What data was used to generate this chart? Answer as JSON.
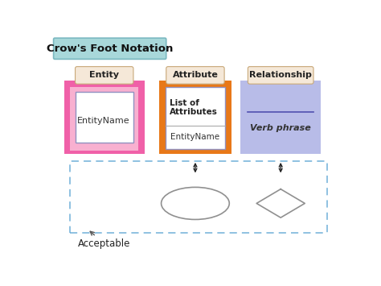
{
  "title": "Crow's Foot Notation",
  "title_bg": "#a8d8da",
  "title_fontsize": 10,
  "bg_color": "#ffffff",
  "entity_label": "Entity",
  "attribute_label": "Attribute",
  "relationship_label": "Relationship",
  "label_bg_top": "#f5e8d8",
  "label_bg_bot": "#e8c8a0",
  "label_border": "#c8a878",
  "entity_box_color": "#f060a8",
  "entity_box_color_light": "#f8b0d0",
  "attribute_box_color": "#e87818",
  "relationship_box_color": "#b8bce8",
  "inner_box_color": "#ffffff",
  "inner_box_border": "#9090c0",
  "entity_inner_text": "EntityName",
  "attribute_inner_text1": "EntityName",
  "attribute_inner_text2": "List of\nAttributes",
  "relationship_line_color": "#5050b0",
  "relationship_inner_text": "Verb phrase",
  "dashed_rect_color": "#70b0d8",
  "acceptable_text": "Acceptable",
  "arrow_color": "#222222",
  "shape_edge_color": "#909090"
}
